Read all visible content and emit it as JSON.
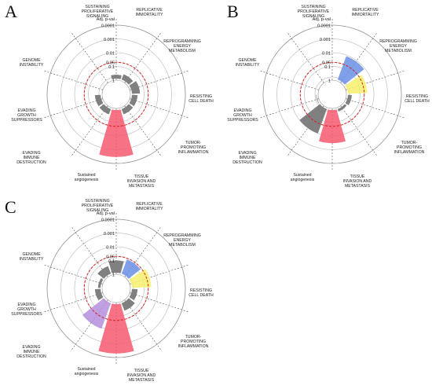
{
  "rlim_labels": [
    "1",
    "0.1",
    "0.05",
    "0.01",
    "0.001",
    "0.0001"
  ],
  "radial_axis_label": "Adj. p-val",
  "threshold_label": "0.05",
  "hallmarks": [
    [
      "SUSTAINING",
      "PROLIFERATIVE",
      "SIGNALING"
    ],
    [
      "REPLICATIVE",
      "IMMORTALITY"
    ],
    [
      "REPROGRAMMING",
      "ENERGY",
      "METABOLISM"
    ],
    [
      "RESISTING",
      "CELL DEATH"
    ],
    [
      "TUMOR-",
      "PROMOTING",
      "INFLAMMATION"
    ],
    [
      "TISSUE",
      "INVASION AND",
      "METASTASIS"
    ],
    [
      "Sustained",
      "angiogenesis"
    ],
    [
      "EVADING",
      "IMMUNE",
      "DESTRUCTION"
    ],
    [
      "EVADING",
      "GROWTH",
      "SUPPRESSORS"
    ],
    [
      "GENOME",
      "INSTABILITY"
    ]
  ],
  "chart_data": [
    {
      "panel": "A",
      "type": "polar-bar",
      "categories": [
        "Sustaining proliferative signaling",
        "Replicative immortality",
        "Reprogramming energy metabolism",
        "Resisting cell death",
        "Tumor-promoting inflammation",
        "Tissue invasion and metastasis",
        "Sustained angiogenesis",
        "Evading immune destruction",
        "Evading growth suppressors",
        "Genome instability"
      ],
      "values": [
        0.4,
        0.3,
        0.2,
        0.3,
        0.3,
        0.0003,
        0.3,
        0.3,
        1,
        1
      ],
      "colors": [
        "#808080",
        "#808080",
        "#808080",
        "#808080",
        "#808080",
        "#f4596f",
        "#808080",
        "#808080",
        "#808080",
        "#808080"
      ],
      "threshold": 0.05
    },
    {
      "panel": "B",
      "type": "polar-bar",
      "categories": [
        "Sustaining proliferative signaling",
        "Replicative immortality",
        "Reprogramming energy metabolism",
        "Resisting cell death",
        "Tumor-promoting inflammation",
        "Tissue invasion and metastasis",
        "Sustained angiogenesis",
        "Evading immune destruction",
        "Evading growth suppressors",
        "Genome instability"
      ],
      "values": [
        1,
        0.012,
        0.03,
        0.4,
        0.5,
        0.003,
        0.01,
        0.7,
        0.8,
        0.8
      ],
      "colors": [
        "#808080",
        "#6b8fe6",
        "#f6f06b",
        "#808080",
        "#808080",
        "#f4596f",
        "#808080",
        "#808080",
        "#808080",
        "#808080"
      ],
      "threshold": 0.05
    },
    {
      "panel": "C",
      "type": "polar-bar",
      "categories": [
        "Sustaining proliferative signaling",
        "Replicative immortality",
        "Reprogramming energy metabolism",
        "Resisting cell death",
        "Tumor-promoting inflammation",
        "Tissue invasion and metastasis",
        "Sustained angiogenesis",
        "Evading immune destruction",
        "Evading growth suppressors",
        "Genome instability"
      ],
      "values": [
        0.1,
        0.06,
        0.03,
        0.3,
        0.2,
        0.0002,
        0.008,
        0.3,
        0.5,
        0.2
      ],
      "colors": [
        "#808080",
        "#6b8fe6",
        "#f6f06b",
        "#808080",
        "#808080",
        "#f4596f",
        "#b58fde",
        "#808080",
        "#808080",
        "#808080"
      ],
      "threshold": 0.05
    }
  ]
}
